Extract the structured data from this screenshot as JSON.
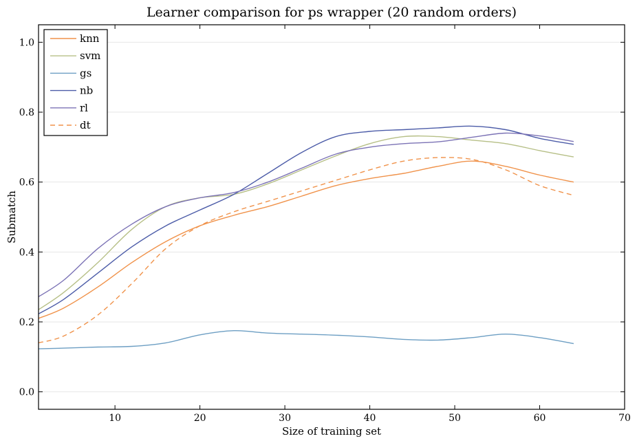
{
  "chart_data": {
    "type": "line",
    "title": "Learner comparison for ps wrapper (20 random orders)",
    "xlabel": "Size of training set",
    "ylabel": "Submatch",
    "xlim": [
      1,
      70
    ],
    "ylim": [
      -0.05,
      1.05
    ],
    "xticks": [
      10,
      20,
      30,
      40,
      50,
      60,
      70
    ],
    "yticks": [
      0.0,
      0.2,
      0.4,
      0.6,
      0.8,
      1.0
    ],
    "xtick_labels": [
      "10",
      "20",
      "30",
      "40",
      "50",
      "60",
      "70"
    ],
    "ytick_labels": [
      "0.0",
      "0.2",
      "0.4",
      "0.6",
      "0.8",
      "1.0"
    ],
    "grid": "horizontal",
    "legend": "top-left",
    "series": [
      {
        "name": "knn",
        "color": "#f0924a",
        "dash": false,
        "x": [
          1,
          4,
          8,
          12,
          16,
          20,
          24,
          28,
          32,
          36,
          40,
          44,
          48,
          52,
          56,
          60,
          64
        ],
        "y": [
          0.21,
          0.24,
          0.3,
          0.37,
          0.43,
          0.475,
          0.505,
          0.53,
          0.56,
          0.59,
          0.61,
          0.625,
          0.645,
          0.66,
          0.645,
          0.62,
          0.6
        ]
      },
      {
        "name": "svm",
        "color": "#b6bf86",
        "dash": false,
        "x": [
          1,
          4,
          8,
          12,
          16,
          20,
          24,
          28,
          32,
          36,
          40,
          44,
          48,
          52,
          56,
          60,
          64
        ],
        "y": [
          0.235,
          0.285,
          0.37,
          0.465,
          0.53,
          0.555,
          0.565,
          0.595,
          0.635,
          0.675,
          0.71,
          0.73,
          0.73,
          0.72,
          0.71,
          0.69,
          0.672
        ]
      },
      {
        "name": "gs",
        "color": "#6c9ec3",
        "dash": false,
        "x": [
          1,
          4,
          8,
          12,
          16,
          20,
          24,
          28,
          32,
          36,
          40,
          44,
          48,
          52,
          56,
          60,
          64
        ],
        "y": [
          0.123,
          0.125,
          0.128,
          0.13,
          0.14,
          0.163,
          0.175,
          0.168,
          0.165,
          0.162,
          0.157,
          0.15,
          0.148,
          0.155,
          0.165,
          0.155,
          0.138
        ]
      },
      {
        "name": "nb",
        "color": "#4c5ca8",
        "dash": false,
        "x": [
          1,
          4,
          8,
          12,
          16,
          20,
          24,
          28,
          32,
          36,
          40,
          44,
          48,
          52,
          56,
          60,
          64
        ],
        "y": [
          0.223,
          0.265,
          0.34,
          0.415,
          0.475,
          0.52,
          0.565,
          0.625,
          0.685,
          0.73,
          0.745,
          0.75,
          0.755,
          0.76,
          0.75,
          0.725,
          0.708
        ]
      },
      {
        "name": "rl",
        "color": "#7b72b5",
        "dash": false,
        "x": [
          1,
          4,
          8,
          12,
          16,
          20,
          24,
          28,
          32,
          36,
          40,
          44,
          48,
          52,
          56,
          60,
          64
        ],
        "y": [
          0.272,
          0.32,
          0.41,
          0.48,
          0.53,
          0.555,
          0.57,
          0.6,
          0.64,
          0.68,
          0.7,
          0.71,
          0.715,
          0.728,
          0.74,
          0.732,
          0.716
        ]
      },
      {
        "name": "dt",
        "color": "#f0924a",
        "dash": true,
        "x": [
          1,
          4,
          8,
          12,
          16,
          20,
          24,
          28,
          32,
          36,
          40,
          44,
          48,
          52,
          56,
          60,
          64
        ],
        "y": [
          0.14,
          0.16,
          0.22,
          0.31,
          0.41,
          0.475,
          0.515,
          0.545,
          0.575,
          0.605,
          0.635,
          0.66,
          0.67,
          0.665,
          0.635,
          0.59,
          0.562
        ]
      }
    ]
  }
}
